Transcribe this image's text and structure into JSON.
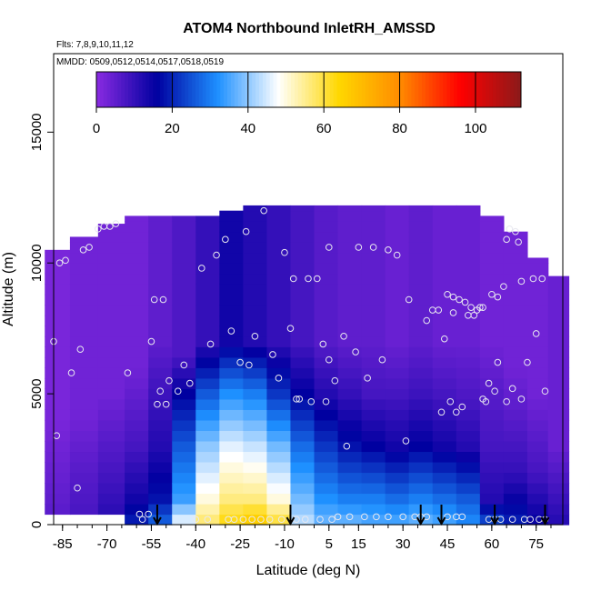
{
  "chart_data": {
    "type": "heatmap",
    "title": "ATOM4 Northbound InletRH_AMSSD",
    "flights_label": "Flts: 7,8,9,10,11,12",
    "dates_label": "MMDD: 0509,0512,0514,0517,0518,0519",
    "xlabel": "Latitude (deg N)",
    "ylabel": "Altitude (m)",
    "xlim": [
      -88,
      84
    ],
    "ylim": [
      0,
      18000
    ],
    "x_ticks": [
      -85,
      -70,
      -55,
      -40,
      -25,
      -10,
      5,
      15,
      30,
      45,
      60,
      75
    ],
    "x_tick_labels": [
      "-85",
      "-70",
      "-55",
      "-40",
      "-25",
      "-10",
      "5",
      "15",
      "30",
      "45",
      "60",
      "75"
    ],
    "y_ticks": [
      0,
      5000,
      10000,
      15000
    ],
    "y_tick_labels": [
      "0",
      "5000",
      "10000",
      "15000"
    ],
    "colorbar": {
      "range": [
        0,
        112
      ],
      "ticks": [
        0,
        20,
        40,
        60,
        80,
        100
      ],
      "tick_labels": [
        "0",
        "20",
        "40",
        "60",
        "80",
        "100"
      ],
      "colors": [
        "#8a2be2",
        "#0000a0",
        "#1e90ff",
        "#ffffff",
        "#ffd700",
        "#ff8c00",
        "#ff0000",
        "#8b1a1a"
      ]
    },
    "profiles": [
      {
        "lat": -87,
        "top": 10500,
        "start": 400,
        "cols": [
          [
            0,
            6
          ],
          [
            4000,
            2
          ]
        ]
      },
      {
        "lat": -78,
        "top": 11000,
        "start": 400,
        "cols": [
          [
            0,
            8
          ],
          [
            2000,
            6
          ],
          [
            4000,
            3
          ]
        ]
      },
      {
        "lat": -68,
        "top": 11500,
        "start": 400,
        "cols": [
          [
            0,
            12
          ],
          [
            2000,
            8
          ],
          [
            5000,
            3
          ]
        ]
      },
      {
        "lat": -60,
        "top": 11800,
        "start": 0,
        "cols": [
          [
            0,
            20
          ],
          [
            1000,
            14
          ],
          [
            3000,
            8
          ],
          [
            6000,
            3
          ]
        ]
      },
      {
        "lat": -52,
        "top": 11800,
        "start": 0,
        "cols": [
          [
            0,
            28
          ],
          [
            1000,
            18
          ],
          [
            3000,
            12
          ],
          [
            5000,
            9
          ],
          [
            7000,
            5
          ]
        ]
      },
      {
        "lat": -44,
        "top": 11800,
        "start": 0,
        "cols": [
          [
            0,
            48
          ],
          [
            1000,
            34
          ],
          [
            3000,
            26
          ],
          [
            5000,
            16
          ],
          [
            6500,
            7
          ]
        ]
      },
      {
        "lat": -36,
        "top": 11800,
        "start": 0,
        "cols": [
          [
            0,
            58
          ],
          [
            1000,
            50
          ],
          [
            3000,
            40
          ],
          [
            5000,
            26
          ],
          [
            7000,
            10
          ]
        ]
      },
      {
        "lat": -28,
        "top": 12000,
        "start": 0,
        "cols": [
          [
            0,
            64
          ],
          [
            1000,
            56
          ],
          [
            3000,
            46
          ],
          [
            5000,
            32
          ],
          [
            7000,
            14
          ]
        ]
      },
      {
        "lat": -20,
        "top": 12200,
        "start": 0,
        "cols": [
          [
            0,
            68
          ],
          [
            1000,
            56
          ],
          [
            3000,
            44
          ],
          [
            5000,
            30
          ],
          [
            7000,
            12
          ]
        ]
      },
      {
        "lat": -12,
        "top": 12200,
        "start": 0,
        "cols": [
          [
            0,
            62
          ],
          [
            1000,
            50
          ],
          [
            3000,
            38
          ],
          [
            5000,
            22
          ],
          [
            7000,
            10
          ]
        ]
      },
      {
        "lat": -4,
        "top": 12200,
        "start": 0,
        "cols": [
          [
            0,
            44
          ],
          [
            1000,
            38
          ],
          [
            3000,
            28
          ],
          [
            5000,
            16
          ],
          [
            7000,
            8
          ]
        ]
      },
      {
        "lat": 4,
        "top": 12200,
        "start": 0,
        "cols": [
          [
            0,
            38
          ],
          [
            1000,
            32
          ],
          [
            3000,
            22
          ],
          [
            5000,
            12
          ],
          [
            7000,
            6
          ]
        ]
      },
      {
        "lat": 12,
        "top": 12200,
        "start": 0,
        "cols": [
          [
            0,
            38
          ],
          [
            1000,
            30
          ],
          [
            3000,
            18
          ],
          [
            5000,
            10
          ],
          [
            7000,
            5
          ]
        ]
      },
      {
        "lat": 20,
        "top": 12200,
        "start": 0,
        "cols": [
          [
            0,
            36
          ],
          [
            1000,
            30
          ],
          [
            3000,
            16
          ],
          [
            5000,
            8
          ],
          [
            7000,
            5
          ]
        ]
      },
      {
        "lat": 28,
        "top": 12200,
        "start": 0,
        "cols": [
          [
            0,
            36
          ],
          [
            1000,
            28
          ],
          [
            3000,
            14
          ],
          [
            5000,
            8
          ],
          [
            7000,
            4
          ]
        ]
      },
      {
        "lat": 36,
        "top": 12200,
        "start": 0,
        "cols": [
          [
            0,
            38
          ],
          [
            1000,
            30
          ],
          [
            3000,
            16
          ],
          [
            5000,
            9
          ],
          [
            7000,
            5
          ]
        ]
      },
      {
        "lat": 44,
        "top": 12200,
        "start": 0,
        "cols": [
          [
            0,
            36
          ],
          [
            1000,
            28
          ],
          [
            3000,
            14
          ],
          [
            5000,
            8
          ],
          [
            7000,
            4
          ]
        ]
      },
      {
        "lat": 52,
        "top": 12200,
        "start": 0,
        "cols": [
          [
            0,
            32
          ],
          [
            1000,
            26
          ],
          [
            3000,
            12
          ],
          [
            5000,
            7
          ],
          [
            7000,
            4
          ]
        ]
      },
      {
        "lat": 60,
        "top": 11800,
        "start": 0,
        "cols": [
          [
            0,
            26
          ],
          [
            1000,
            12
          ],
          [
            3000,
            8
          ],
          [
            5000,
            6
          ],
          [
            7000,
            3
          ]
        ]
      },
      {
        "lat": 68,
        "top": 11200,
        "start": 0,
        "cols": [
          [
            0,
            20
          ],
          [
            2000,
            10
          ],
          [
            4000,
            6
          ],
          [
            6000,
            3
          ]
        ]
      },
      {
        "lat": 76,
        "top": 10200,
        "start": 0,
        "cols": [
          [
            0,
            16
          ],
          [
            2000,
            8
          ],
          [
            5000,
            3
          ]
        ]
      },
      {
        "lat": 82,
        "top": 9500,
        "start": 0,
        "cols": [
          [
            0,
            12
          ],
          [
            3000,
            4
          ]
        ]
      }
    ],
    "points": [
      [
        -88,
        7000
      ],
      [
        -87,
        3400
      ],
      [
        -86,
        10000
      ],
      [
        -84,
        10100
      ],
      [
        -82,
        5800
      ],
      [
        -80,
        1400
      ],
      [
        -79,
        6700
      ],
      [
        -78,
        10500
      ],
      [
        -76,
        10600
      ],
      [
        -73,
        11300
      ],
      [
        -71,
        11400
      ],
      [
        -69,
        11400
      ],
      [
        -67,
        11500
      ],
      [
        -63,
        5800
      ],
      [
        -59,
        400
      ],
      [
        -58,
        200
      ],
      [
        -56,
        400
      ],
      [
        -55,
        7000
      ],
      [
        -54,
        8600
      ],
      [
        -53,
        4600
      ],
      [
        -52,
        5100
      ],
      [
        -51,
        8600
      ],
      [
        -50,
        4600
      ],
      [
        -49,
        5500
      ],
      [
        -46,
        5100
      ],
      [
        -44,
        6100
      ],
      [
        -42,
        5400
      ],
      [
        -40,
        200
      ],
      [
        -38,
        9800
      ],
      [
        -36,
        200
      ],
      [
        -35,
        6900
      ],
      [
        -33,
        10300
      ],
      [
        -30,
        10900
      ],
      [
        -29,
        200
      ],
      [
        -28,
        7400
      ],
      [
        -27,
        200
      ],
      [
        -25,
        6200
      ],
      [
        -24,
        200
      ],
      [
        -23,
        11200
      ],
      [
        -22,
        6100
      ],
      [
        -21,
        200
      ],
      [
        -20,
        7200
      ],
      [
        -18,
        200
      ],
      [
        -17,
        12000
      ],
      [
        -15,
        200
      ],
      [
        -14,
        6500
      ],
      [
        -12,
        5600
      ],
      [
        -11,
        200
      ],
      [
        -10,
        10400
      ],
      [
        -8,
        7500
      ],
      [
        -7,
        9400
      ],
      [
        -6,
        4800
      ],
      [
        -6,
        200
      ],
      [
        -5,
        4800
      ],
      [
        -3,
        200
      ],
      [
        -2,
        9400
      ],
      [
        -1,
        4700
      ],
      [
        1,
        9400
      ],
      [
        2,
        200
      ],
      [
        3,
        6900
      ],
      [
        4,
        4700
      ],
      [
        5,
        6300
      ],
      [
        5,
        10600
      ],
      [
        6,
        200
      ],
      [
        7,
        5500
      ],
      [
        8,
        300
      ],
      [
        10,
        7200
      ],
      [
        11,
        3000
      ],
      [
        12,
        300
      ],
      [
        14,
        6600
      ],
      [
        15,
        10600
      ],
      [
        17,
        300
      ],
      [
        18,
        5600
      ],
      [
        20,
        10600
      ],
      [
        21,
        300
      ],
      [
        23,
        6300
      ],
      [
        25,
        300
      ],
      [
        25,
        10500
      ],
      [
        28,
        10300
      ],
      [
        30,
        300
      ],
      [
        31,
        3200
      ],
      [
        32,
        8600
      ],
      [
        34,
        300
      ],
      [
        36,
        300
      ],
      [
        38,
        7800
      ],
      [
        38,
        300
      ],
      [
        40,
        8200
      ],
      [
        42,
        8200
      ],
      [
        43,
        4300
      ],
      [
        44,
        7100
      ],
      [
        45,
        300
      ],
      [
        45,
        8800
      ],
      [
        46,
        4700
      ],
      [
        47,
        8100
      ],
      [
        47,
        8700
      ],
      [
        48,
        4300
      ],
      [
        48,
        300
      ],
      [
        49,
        8600
      ],
      [
        50,
        4500
      ],
      [
        50,
        300
      ],
      [
        51,
        8500
      ],
      [
        52,
        8000
      ],
      [
        53,
        8300
      ],
      [
        54,
        8000
      ],
      [
        55,
        8200
      ],
      [
        56,
        8300
      ],
      [
        57,
        4800
      ],
      [
        57,
        8300
      ],
      [
        58,
        4700
      ],
      [
        59,
        5400
      ],
      [
        59,
        200
      ],
      [
        60,
        8800
      ],
      [
        61,
        5100
      ],
      [
        61,
        200
      ],
      [
        62,
        6200
      ],
      [
        62,
        8700
      ],
      [
        63,
        200
      ],
      [
        64,
        9100
      ],
      [
        65,
        10900
      ],
      [
        65,
        4700
      ],
      [
        66,
        11300
      ],
      [
        67,
        5200
      ],
      [
        67,
        200
      ],
      [
        68,
        11200
      ],
      [
        69,
        10800
      ],
      [
        70,
        9300
      ],
      [
        70,
        4800
      ],
      [
        71,
        200
      ],
      [
        72,
        6200
      ],
      [
        73,
        200
      ],
      [
        74,
        9400
      ],
      [
        75,
        7300
      ],
      [
        76,
        200
      ],
      [
        77,
        9400
      ],
      [
        78,
        5100
      ],
      [
        78,
        200
      ]
    ],
    "arrows": [
      -53,
      -8,
      36,
      43,
      61,
      78
    ]
  }
}
